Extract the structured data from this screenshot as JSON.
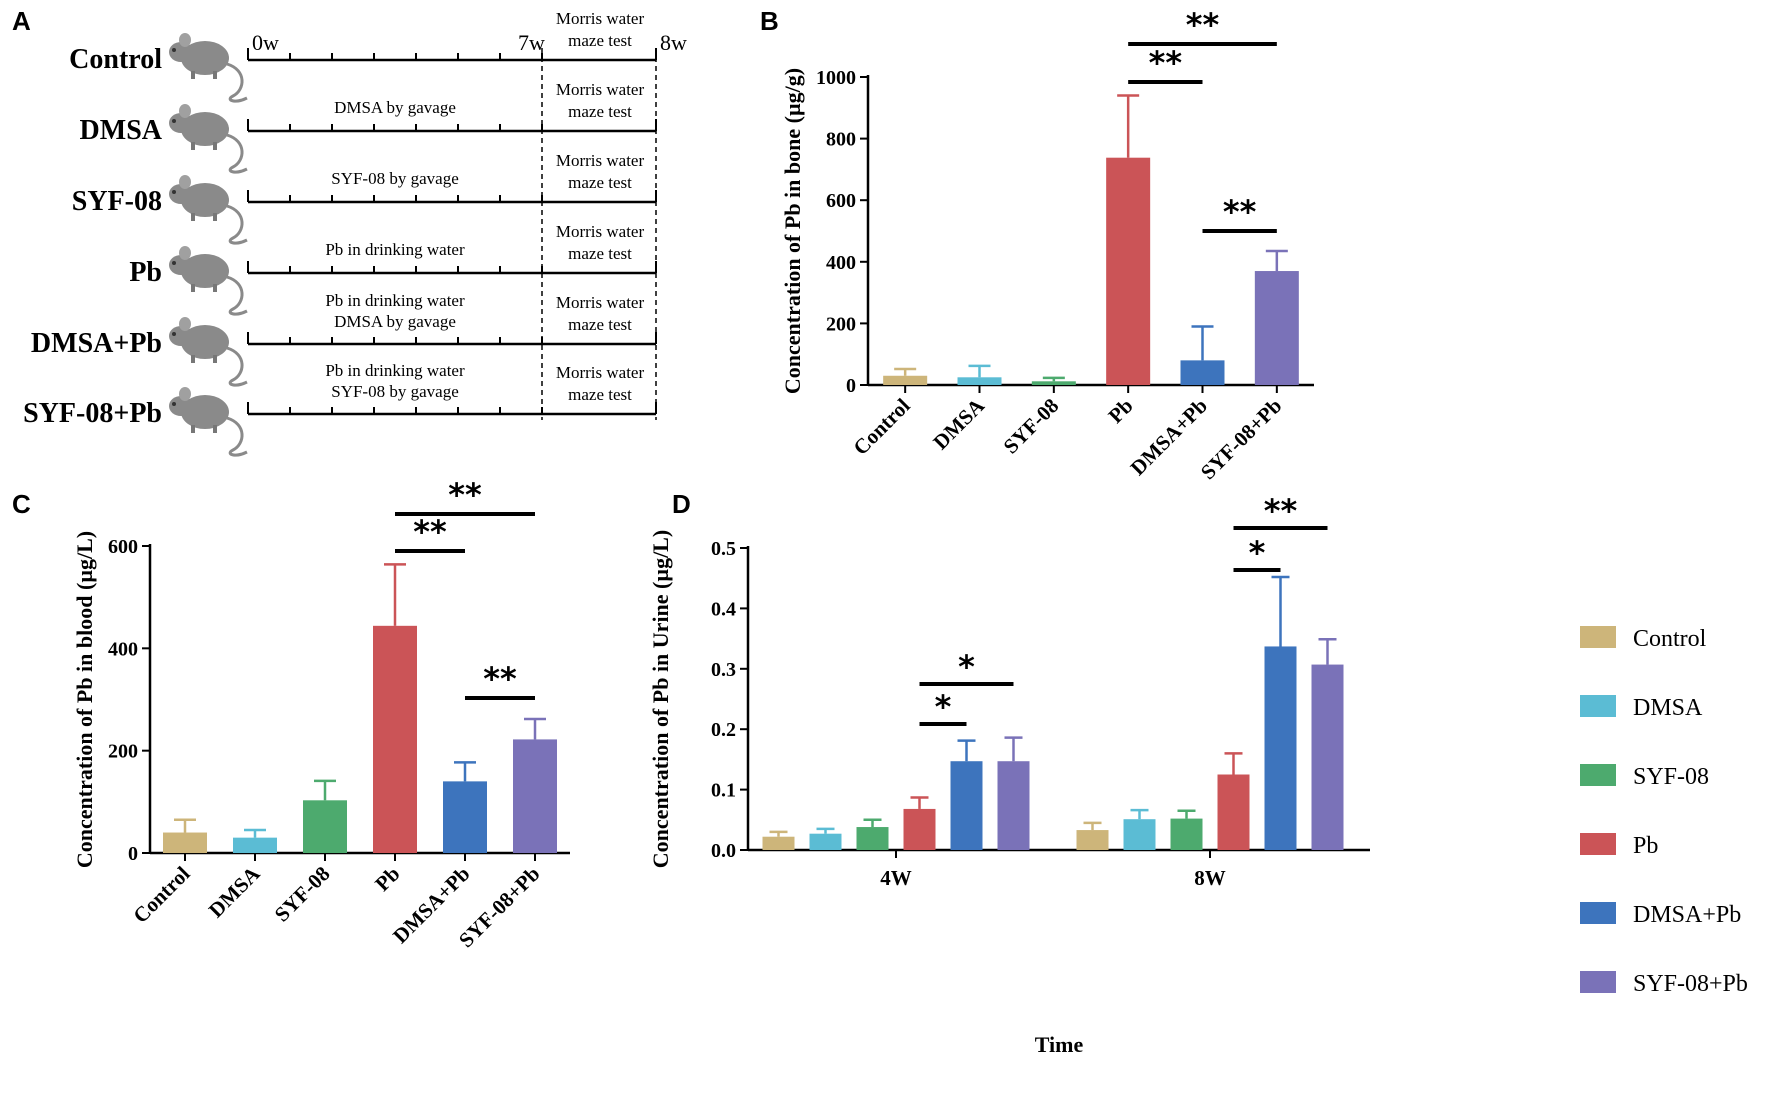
{
  "colors": {
    "Control": "#cdb57a",
    "DMSA": "#5bbcd4",
    "SYF-08": "#4daa6e",
    "Pb": "#cb5457",
    "DMSA+Pb": "#3d74bd",
    "SYF-08+Pb": "#7a72b8"
  },
  "panels": {
    "A": {
      "letter": "A",
      "weeks": [
        "0w",
        "7w",
        "8w"
      ],
      "rows": [
        {
          "group": "Control",
          "treatment": [],
          "test": [
            "Morris water",
            "maze test"
          ]
        },
        {
          "group": "DMSA",
          "treatment": [
            "DMSA by gavage"
          ],
          "test": [
            "Morris water",
            "maze test"
          ]
        },
        {
          "group": "SYF-08",
          "treatment": [
            "SYF-08 by gavage"
          ],
          "test": [
            "Morris water",
            "maze test"
          ]
        },
        {
          "group": "Pb",
          "treatment": [
            "Pb in drinking water"
          ],
          "test": [
            "Morris water",
            "maze test"
          ]
        },
        {
          "group": "DMSA+Pb",
          "treatment": [
            "Pb in drinking water",
            "DMSA by gavage"
          ],
          "test": [
            "Morris water",
            "maze test"
          ]
        },
        {
          "group": "SYF-08+Pb",
          "treatment": [
            "Pb in drinking water",
            "SYF-08 by gavage"
          ],
          "test": [
            "Morris water",
            "maze test"
          ]
        }
      ]
    },
    "B": {
      "letter": "B"
    },
    "C": {
      "letter": "C"
    },
    "D": {
      "letter": "D"
    }
  },
  "legend": {
    "items": [
      "Control",
      "DMSA",
      "SYF-08",
      "Pb",
      "DMSA+Pb",
      "SYF-08+Pb"
    ]
  },
  "chart_data": [
    {
      "id": "B",
      "type": "bar",
      "categories": [
        "Control",
        "DMSA",
        "SYF-08",
        "Pb",
        "DMSA+Pb",
        "SYF-08+Pb"
      ],
      "values": [
        30,
        25,
        12,
        738,
        80,
        370
      ],
      "errors": [
        22,
        37,
        11,
        202,
        110,
        65
      ],
      "ylabel": "Concentration of Pb in bone (µg/g)",
      "xlabel": "",
      "ylim": [
        0,
        1000
      ],
      "yticks": [
        0,
        200,
        400,
        600,
        800,
        1000
      ],
      "significance": [
        {
          "from": 3,
          "to": 4,
          "label": "**"
        },
        {
          "from": 3,
          "to": 5,
          "label": "**"
        },
        {
          "from": 4,
          "to": 5,
          "label": "**"
        }
      ]
    },
    {
      "id": "C",
      "type": "bar",
      "categories": [
        "Control",
        "DMSA",
        "SYF-08",
        "Pb",
        "DMSA+Pb",
        "SYF-08+Pb"
      ],
      "values": [
        40,
        30,
        103,
        444,
        140,
        222
      ],
      "errors": [
        25,
        15,
        38,
        120,
        37,
        40
      ],
      "ylabel": "Concentration of Pb in blood (µg/L)",
      "xlabel": "",
      "ylim": [
        0,
        600
      ],
      "yticks": [
        0,
        200,
        400,
        600
      ],
      "significance": [
        {
          "from": 3,
          "to": 4,
          "label": "**"
        },
        {
          "from": 3,
          "to": 5,
          "label": "**"
        },
        {
          "from": 4,
          "to": 5,
          "label": "**"
        }
      ]
    },
    {
      "id": "D",
      "type": "bar",
      "categories": [
        "4W",
        "8W"
      ],
      "series": [
        {
          "name": "Control",
          "values": [
            0.022,
            0.033
          ],
          "errors": [
            0.008,
            0.012
          ]
        },
        {
          "name": "DMSA",
          "values": [
            0.027,
            0.051
          ],
          "errors": [
            0.008,
            0.015
          ]
        },
        {
          "name": "SYF-08",
          "values": [
            0.038,
            0.052
          ],
          "errors": [
            0.012,
            0.013
          ]
        },
        {
          "name": "Pb",
          "values": [
            0.068,
            0.125
          ],
          "errors": [
            0.019,
            0.035
          ]
        },
        {
          "name": "DMSA+Pb",
          "values": [
            0.147,
            0.337
          ],
          "errors": [
            0.034,
            0.115
          ]
        },
        {
          "name": "SYF-08+Pb",
          "values": [
            0.147,
            0.307
          ],
          "errors": [
            0.039,
            0.042
          ]
        }
      ],
      "ylabel": "Concentration of Pb in Urine (µg/L)",
      "xlabel": "Time",
      "ylim": [
        0,
        0.5
      ],
      "yticks": [
        "0.0",
        "0.1",
        "0.2",
        "0.3",
        "0.4",
        "0.5"
      ],
      "significance": [
        {
          "group": 0,
          "from": 3,
          "to": 4,
          "label": "*"
        },
        {
          "group": 0,
          "from": 3,
          "to": 5,
          "label": "*"
        },
        {
          "group": 1,
          "from": 3,
          "to": 4,
          "label": "*"
        },
        {
          "group": 1,
          "from": 3,
          "to": 5,
          "label": "**"
        }
      ]
    }
  ]
}
